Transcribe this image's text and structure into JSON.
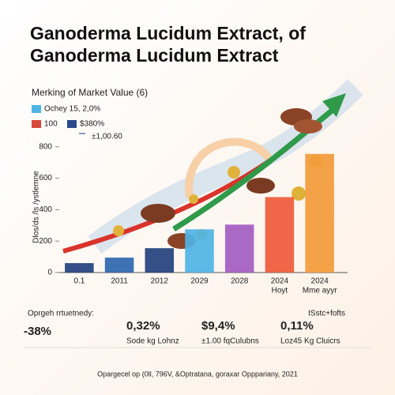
{
  "chart_data": {
    "type": "bar",
    "title": "Ganoderma Lucidum Extract, of",
    "subtitle": "Ganoderma Lucidum Extract",
    "chart_title": "Merking of Market Value (6)",
    "y_label": "Dlos/ds /ls /ystlemne",
    "legend": [
      {
        "label": "Ochey 15, 2,0%",
        "color": "#4fb4e6"
      },
      {
        "label": "100",
        "color": "#d9463a"
      },
      {
        "label": "$380%",
        "color": "#2b4a8c"
      },
      {
        "label": "±1,00.60",
        "color": "#8a9bb5"
      }
    ],
    "categories": [
      "0.1",
      "2011",
      "2012",
      "2029",
      "2028",
      "2024",
      "2024"
    ],
    "category_sublabels": [
      null,
      null,
      null,
      null,
      null,
      "Hoyt",
      "Mme ayyr"
    ],
    "values": [
      60,
      95,
      155,
      275,
      305,
      480,
      755
    ],
    "colors": [
      "#24407e",
      "#2f66b0",
      "#24407e",
      "#4fb4e6",
      "#a45cc2",
      "#ee5a3a",
      "#f39a3a"
    ],
    "ylim": [
      0,
      1000
    ],
    "yticks": [
      0,
      200,
      400,
      600,
      800
    ]
  },
  "stats": [
    {
      "caption": "Oprgeh rrtuetnedy:",
      "value": "-38%",
      "color": "#d8262b"
    },
    {
      "value": "0,32%",
      "note": "Sode kg Lohnz",
      "color": "#2e8b3e"
    },
    {
      "value": "$9,4%",
      "note": "±1.00 fqCulubns",
      "color": "#e0601f"
    },
    {
      "caption": "ISstc+fofts",
      "value": "0,11%",
      "note": "Loz45 Kg Cluicrs",
      "color": "#1f6fb8"
    }
  ],
  "footer": "Opargecel op (0ll, 796V, &Optratana, goraxar Opppariany, 2021"
}
